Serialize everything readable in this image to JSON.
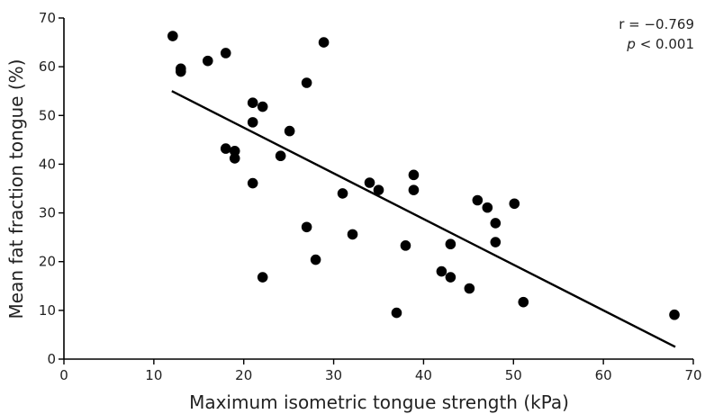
{
  "chart_data": {
    "type": "scatter",
    "title": "",
    "xlabel": "Maximum isometric tongue strength (kPa)",
    "ylabel": "Mean fat fraction tongue (%)",
    "xlim": [
      0,
      70
    ],
    "ylim": [
      0,
      70
    ],
    "x_ticks": [
      "0",
      "10",
      "20",
      "30",
      "40",
      "50",
      "60",
      "70"
    ],
    "y_ticks": [
      "0",
      "10",
      "20",
      "30",
      "40",
      "50",
      "60",
      "70"
    ],
    "grid": false,
    "legend": "none",
    "point_color": "#000000",
    "line_color": "#000000",
    "annotation": {
      "r_text": "r = −0.769",
      "p_symbol": "p",
      "p_rest": " < 0.001"
    },
    "regression_line": {
      "x": [
        12,
        68
      ],
      "y": [
        55,
        2.5
      ]
    },
    "points": [
      {
        "x": 12.1,
        "y": 66.3
      },
      {
        "x": 13.0,
        "y": 59.6
      },
      {
        "x": 13.0,
        "y": 59.0
      },
      {
        "x": 16.0,
        "y": 61.2
      },
      {
        "x": 18.0,
        "y": 62.8
      },
      {
        "x": 18.0,
        "y": 43.2
      },
      {
        "x": 19.0,
        "y": 42.7
      },
      {
        "x": 19.0,
        "y": 41.2
      },
      {
        "x": 21.0,
        "y": 52.6
      },
      {
        "x": 22.1,
        "y": 51.8
      },
      {
        "x": 21.0,
        "y": 48.6
      },
      {
        "x": 21.0,
        "y": 36.1
      },
      {
        "x": 22.1,
        "y": 16.8
      },
      {
        "x": 24.1,
        "y": 41.7
      },
      {
        "x": 25.1,
        "y": 46.8
      },
      {
        "x": 27.0,
        "y": 56.7
      },
      {
        "x": 27.0,
        "y": 27.1
      },
      {
        "x": 28.0,
        "y": 20.4
      },
      {
        "x": 28.9,
        "y": 65.0
      },
      {
        "x": 31.0,
        "y": 34.0
      },
      {
        "x": 32.1,
        "y": 25.6
      },
      {
        "x": 34.0,
        "y": 36.2
      },
      {
        "x": 35.0,
        "y": 34.7
      },
      {
        "x": 37.0,
        "y": 9.5
      },
      {
        "x": 38.0,
        "y": 23.3
      },
      {
        "x": 38.9,
        "y": 37.8
      },
      {
        "x": 38.9,
        "y": 34.7
      },
      {
        "x": 42.0,
        "y": 18.0
      },
      {
        "x": 43.0,
        "y": 23.6
      },
      {
        "x": 43.0,
        "y": 16.8
      },
      {
        "x": 45.1,
        "y": 14.5
      },
      {
        "x": 46.0,
        "y": 32.6
      },
      {
        "x": 47.1,
        "y": 31.1
      },
      {
        "x": 48.0,
        "y": 27.9
      },
      {
        "x": 48.0,
        "y": 24.0
      },
      {
        "x": 50.1,
        "y": 31.9
      },
      {
        "x": 51.1,
        "y": 11.7
      },
      {
        "x": 67.9,
        "y": 9.1
      }
    ]
  }
}
